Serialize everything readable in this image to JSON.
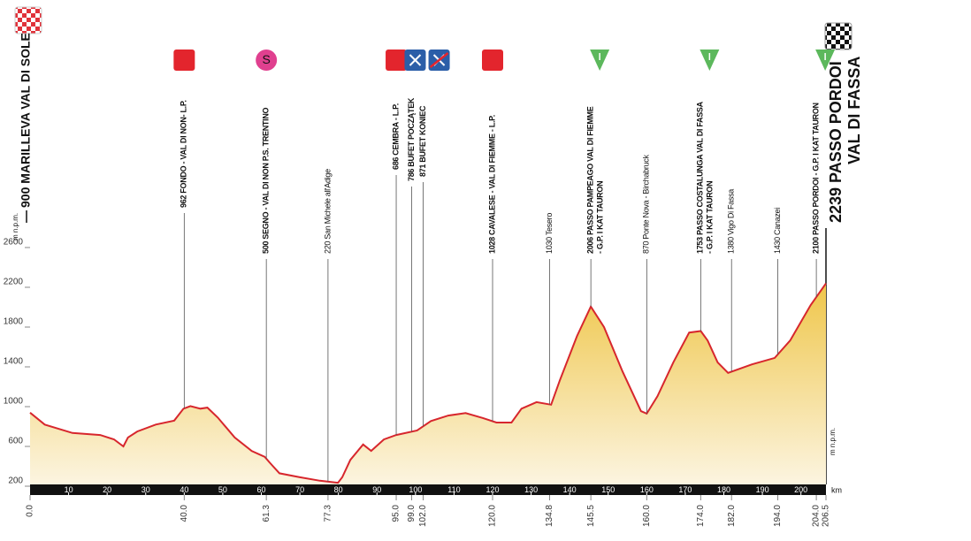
{
  "chart_data": {
    "type": "area",
    "start": {
      "lines": [
        "900 MARILLEVA VAL DI SOLE"
      ]
    },
    "finish": {
      "lines": [
        "2239 PASSO PORDOI",
        "VAL DI FASSA"
      ]
    },
    "y_unit": "m n.p.m.",
    "x_unit": "km",
    "color": "#d7262d",
    "fill": [
      "#efc64a",
      "#fcf5e2"
    ],
    "x": [
      0,
      3.8,
      11.0,
      18.2,
      21.8,
      24.2,
      25.4,
      27.8,
      32.6,
      37.4,
      39.8,
      41.6,
      44.2,
      46.0,
      48.7,
      53.1,
      57.5,
      60.9,
      62.1,
      64.7,
      70.0,
      75.2,
      79.9,
      81.0,
      83.1,
      86.4,
      88.5,
      91.8,
      95.0,
      100.4,
      104.0,
      108.5,
      113.0,
      117.5,
      121.0,
      124.9,
      127.5,
      131.4,
      135.2,
      137.5,
      141.9,
      145.5,
      148.9,
      153.7,
      158.5,
      160.0,
      162.8,
      166.9,
      171.0,
      174.0,
      175.8,
      178.4,
      181.1,
      187.3,
      193.2,
      197.2,
      202.5,
      206.5
    ],
    "values": [
      940,
      820,
      735,
      715,
      670,
      600,
      690,
      750,
      820,
      860,
      980,
      1005,
      980,
      990,
      890,
      690,
      555,
      495,
      440,
      330,
      290,
      255,
      235,
      290,
      465,
      620,
      555,
      670,
      715,
      760,
      855,
      910,
      935,
      885,
      840,
      840,
      980,
      1045,
      1020,
      1270,
      1710,
      2006,
      1800,
      1355,
      955,
      930,
      1105,
      1445,
      1745,
      1760,
      1665,
      1445,
      1340,
      1425,
      1490,
      1665,
      2020,
      2239
    ],
    "xlim": [
      0,
      206.5
    ],
    "ylim": [
      200,
      2600
    ],
    "yticks": [
      200,
      600,
      1000,
      1400,
      1800,
      2200,
      2600
    ],
    "bar_ticks": [
      10,
      20,
      30,
      40,
      50,
      60,
      70,
      80,
      90,
      100,
      110,
      120,
      130,
      140,
      150,
      160,
      170,
      180,
      190,
      200
    ],
    "xticks": [
      {
        "value": 0,
        "label": "0.0"
      },
      {
        "value": 40,
        "label": "40.0"
      },
      {
        "value": 61.3,
        "label": "61.3"
      },
      {
        "value": 77.3,
        "label": "77.3"
      },
      {
        "value": 95,
        "label": "95.0"
      },
      {
        "value": 99,
        "label": "99.0"
      },
      {
        "value": 102,
        "label": "102.0"
      },
      {
        "value": 120,
        "label": "120.0"
      },
      {
        "value": 134.8,
        "label": "134.8"
      },
      {
        "value": 145.5,
        "label": "145.5"
      },
      {
        "value": 160,
        "label": "160.0"
      },
      {
        "value": 174,
        "label": "174.0"
      },
      {
        "value": 182,
        "label": "182.0"
      },
      {
        "value": 194,
        "label": "194.0"
      },
      {
        "value": 204,
        "label": "204.0"
      },
      {
        "value": 206.5,
        "label": "206.5"
      }
    ],
    "annotations": [
      {
        "x": 40,
        "lines": [
          "962 FONDO - VAL DI NON- L.P."
        ],
        "icon": "red"
      },
      {
        "x": 61.3,
        "lines": [
          "500 SEGNO - VAL DI NON P.S. TRENTINO"
        ],
        "icon": "sprint",
        "icon_text": "S"
      },
      {
        "x": 77.3,
        "lines": [
          "220 San Michele all'Adige"
        ]
      },
      {
        "x": 95,
        "lines": [
          "686 CEMBRA - L.P."
        ],
        "icon": "red"
      },
      {
        "x": 99,
        "lines": [
          "786 BUFET POCZĄTEK"
        ],
        "icon": "feed"
      },
      {
        "x": 102,
        "lines": [
          "871 BUFET KONIEC"
        ],
        "icon": "feed-end"
      },
      {
        "x": 120,
        "lines": [
          "1028 CAVALESE - VAL DI FIEMME - L.P."
        ],
        "icon": "red"
      },
      {
        "x": 134.8,
        "lines": [
          "1030 Tesero"
        ]
      },
      {
        "x": 145.5,
        "lines": [
          "2006 PASSO PAMPEAGO VAL DI FIEMME",
          "- G.P. I KAT TAURON"
        ],
        "icon": "kom"
      },
      {
        "x": 160,
        "lines": [
          "870 Ponte Nova - Birchabruck"
        ]
      },
      {
        "x": 174,
        "lines": [
          "1753 PASSO COSTALUNGA VAL DI FASSA",
          "- G.P. I KAT TAURON"
        ],
        "icon": "kom"
      },
      {
        "x": 182,
        "lines": [
          "1380 Vigo Di Fassa"
        ]
      },
      {
        "x": 194,
        "lines": [
          "1430 Canazei"
        ]
      },
      {
        "x": 204,
        "lines": [
          "2100 PASSO PORDOI - G.P. I KAT TAURON"
        ],
        "icon": "kom"
      }
    ]
  }
}
